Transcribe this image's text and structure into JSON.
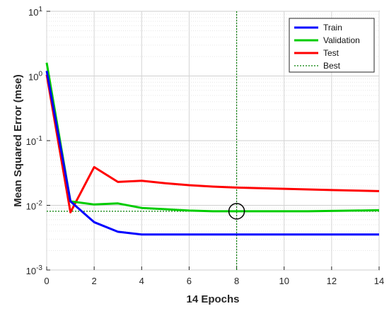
{
  "chart_data": {
    "type": "line",
    "title": "",
    "xlabel": "14 Epochs",
    "ylabel": "Mean Squared Error  (mse)",
    "xlim": [
      0,
      14
    ],
    "ylim": [
      0.001,
      10
    ],
    "yscale": "log",
    "grid": true,
    "legend_position": "top-right",
    "x_ticks": [
      0,
      2,
      4,
      6,
      8,
      10,
      12,
      14
    ],
    "y_ticks": [
      {
        "value": 0.001,
        "base": "10",
        "exp": "-3"
      },
      {
        "value": 0.01,
        "base": "10",
        "exp": "-2"
      },
      {
        "value": 0.1,
        "base": "10",
        "exp": "-1"
      },
      {
        "value": 1,
        "base": "10",
        "exp": "0"
      },
      {
        "value": 10,
        "base": "10",
        "exp": "1"
      }
    ],
    "x": [
      0,
      1,
      2,
      3,
      4,
      5,
      6,
      7,
      8,
      9,
      10,
      11,
      12,
      13,
      14
    ],
    "series": [
      {
        "name": "Train",
        "color": "#0000ff",
        "values": [
          1.2,
          0.0115,
          0.0055,
          0.0039,
          0.00355,
          0.00355,
          0.00355,
          0.00355,
          0.00355,
          0.00355,
          0.00355,
          0.00355,
          0.00355,
          0.00355,
          0.00355
        ]
      },
      {
        "name": "Validation",
        "color": "#00cc00",
        "values": [
          1.6,
          0.0115,
          0.0103,
          0.0107,
          0.0091,
          0.0087,
          0.0083,
          0.0081,
          0.0081,
          0.0081,
          0.0081,
          0.0081,
          0.0082,
          0.0083,
          0.0084
        ]
      },
      {
        "name": "Test",
        "color": "#ff0000",
        "values": [
          1.05,
          0.0078,
          0.039,
          0.023,
          0.024,
          0.022,
          0.0205,
          0.0195,
          0.0188,
          0.0184,
          0.018,
          0.0176,
          0.0172,
          0.0169,
          0.0166
        ]
      }
    ],
    "best": {
      "name": "Best",
      "epoch": 8,
      "value": 0.0081,
      "color": "#007f00"
    }
  }
}
